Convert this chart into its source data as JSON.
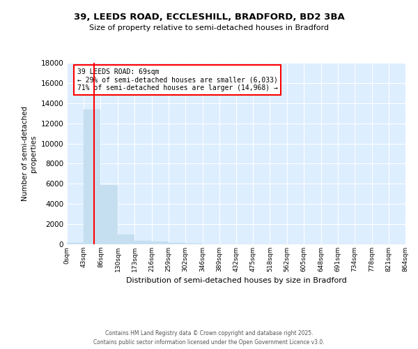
{
  "title_line1": "39, LEEDS ROAD, ECCLESHILL, BRADFORD, BD2 3BA",
  "title_line2": "Size of property relative to semi-detached houses in Bradford",
  "xlabel": "Distribution of semi-detached houses by size in Bradford",
  "ylabel": "Number of semi-detached\nproperties",
  "annotation_line1": "39 LEEDS ROAD: 69sqm",
  "annotation_line2": "← 29% of semi-detached houses are smaller (6,033)",
  "annotation_line3": "71% of semi-detached houses are larger (14,968) →",
  "bar_edges": [
    0,
    43,
    86,
    130,
    173,
    216,
    259,
    302,
    346,
    389,
    432,
    475,
    518,
    562,
    605,
    648,
    691,
    734,
    778,
    821,
    864
  ],
  "bar_heights": [
    150,
    13350,
    5900,
    970,
    320,
    290,
    120,
    60,
    0,
    0,
    0,
    0,
    0,
    0,
    0,
    0,
    0,
    0,
    0,
    0
  ],
  "bar_color": "#c6dff0",
  "bar_edgecolor": "#c6dff0",
  "vline_x": 69,
  "vline_color": "red",
  "annotation_box_edgecolor": "red",
  "annotation_box_facecolor": "white",
  "plot_bg_color": "#ddeeff",
  "fig_bg_color": "#ffffff",
  "ylim": [
    0,
    18000
  ],
  "yticks": [
    0,
    2000,
    4000,
    6000,
    8000,
    10000,
    12000,
    14000,
    16000,
    18000
  ],
  "grid_color": "#ffffff",
  "footer_line1": "Contains HM Land Registry data © Crown copyright and database right 2025.",
  "footer_line2": "Contains public sector information licensed under the Open Government Licence v3.0."
}
